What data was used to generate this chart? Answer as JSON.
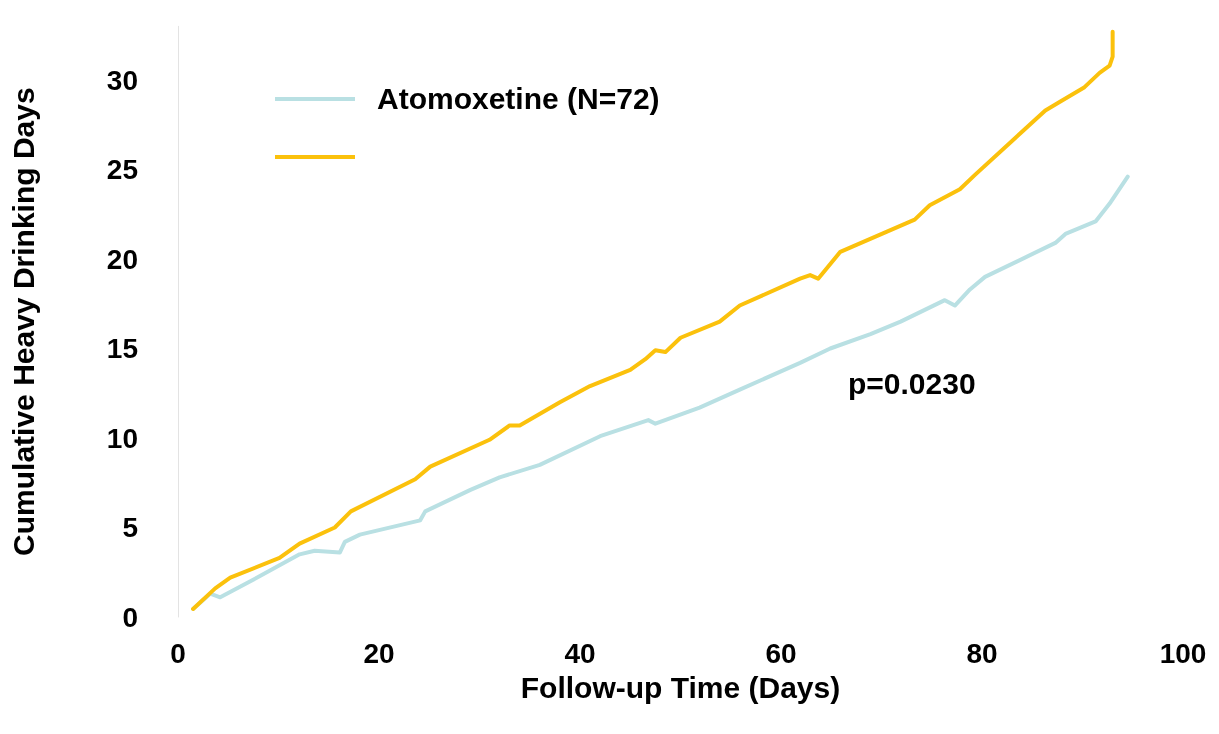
{
  "chart_data": {
    "type": "line",
    "xlabel": "Follow-up Time (Days)",
    "ylabel": "Cumulative Heavy Drinking Days",
    "xlim": [
      0,
      100
    ],
    "xticks": [
      0,
      20,
      40,
      60,
      80,
      100
    ],
    "ylim": [
      0,
      33
    ],
    "yticks": [
      0,
      5,
      10,
      15,
      20,
      25,
      30
    ],
    "grid": false,
    "legend": "top left",
    "marker": "none",
    "line_style": "solid",
    "annotations": [
      "p=0.0230"
    ],
    "series": [
      {
        "name": "Atomoxetine (N=72)",
        "color": "#b9e0e3",
        "x": [
          1.5,
          3.2,
          4.2,
          8.2,
          12.1,
          13.6,
          16.1,
          16.6,
          18.1,
          24.1,
          24.6,
          29.1,
          32.0,
          36.0,
          42.0,
          46.8,
          47.5,
          51.9,
          55.9,
          61.9,
          64.9,
          68.9,
          71.9,
          76.3,
          77.3,
          78.8,
          80.3,
          87.3,
          88.3,
          91.3,
          92.7,
          94.5
        ],
        "values": [
          0.45,
          1.3,
          1.1,
          2.3,
          3.5,
          3.7,
          3.6,
          4.2,
          4.6,
          5.4,
          5.9,
          7.1,
          7.8,
          8.5,
          10.1,
          11.0,
          10.8,
          11.7,
          12.7,
          14.2,
          15.0,
          15.8,
          16.5,
          17.7,
          17.4,
          18.3,
          19.0,
          20.9,
          21.4,
          22.1,
          23.1,
          24.6
        ]
      },
      {
        "color": "#fbc10c",
        "x": [
          1.5,
          3.7,
          5.2,
          10.1,
          12.1,
          15.6,
          17.2,
          23.6,
          25.1,
          31.0,
          33.0,
          34.0,
          38.0,
          41.0,
          45.0,
          46.5,
          47.5,
          48.5,
          50.0,
          53.9,
          55.9,
          61.9,
          62.9,
          63.7,
          65.9,
          73.3,
          74.8,
          77.8,
          79.3,
          86.3,
          87.8,
          90.2,
          91.7,
          92.7,
          93.0,
          93.0
        ],
        "values": [
          0.45,
          1.6,
          2.2,
          3.3,
          4.1,
          5.0,
          5.9,
          7.7,
          8.4,
          9.9,
          10.7,
          10.7,
          12.0,
          12.9,
          13.8,
          14.4,
          14.9,
          14.8,
          15.6,
          16.5,
          17.4,
          18.9,
          19.1,
          18.9,
          20.4,
          22.2,
          23.0,
          23.9,
          24.7,
          28.3,
          28.8,
          29.6,
          30.4,
          30.8,
          31.3,
          32.7
        ]
      }
    ]
  }
}
